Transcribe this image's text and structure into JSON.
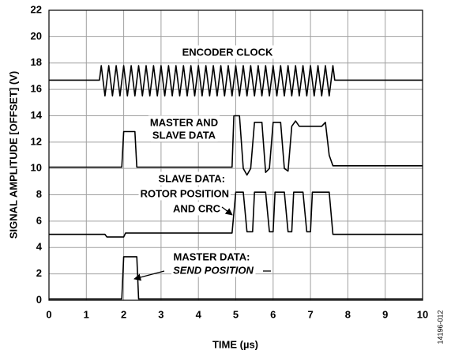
{
  "chart_data": {
    "type": "line",
    "xlabel": "TIME (µs)",
    "ylabel": "SIGNAL AMPLITUDE [OFFSET] (V)",
    "xlim": [
      0,
      10
    ],
    "ylim": [
      0,
      22
    ],
    "xticks": [
      0,
      1,
      2,
      3,
      4,
      5,
      6,
      7,
      8,
      9,
      10
    ],
    "yticks": [
      0,
      2,
      4,
      6,
      8,
      10,
      12,
      14,
      16,
      18,
      20,
      22
    ],
    "grid": true,
    "series": [
      {
        "color": "#000000",
        "x": [
          0,
          1.35,
          1.4,
          1.5,
          1.6,
          1.7,
          1.8,
          1.9,
          2.0,
          2.1,
          2.2,
          2.3,
          2.4,
          2.5,
          2.6,
          2.7,
          2.8,
          2.9,
          3.0,
          3.1,
          3.2,
          3.3,
          3.4,
          3.5,
          3.6,
          3.7,
          3.8,
          3.9,
          4.0,
          4.1,
          4.2,
          4.3,
          4.4,
          4.5,
          4.6,
          4.7,
          4.8,
          4.9,
          5.0,
          5.1,
          5.2,
          5.3,
          5.4,
          5.5,
          5.6,
          5.7,
          5.8,
          5.9,
          6.0,
          6.1,
          6.2,
          6.3,
          6.4,
          6.5,
          6.6,
          6.7,
          6.8,
          6.9,
          7.0,
          7.1,
          7.2,
          7.3,
          7.4,
          7.5,
          7.6,
          7.65,
          10
        ],
        "values": [
          16.7,
          16.7,
          17.8,
          15.5,
          17.8,
          15.5,
          17.8,
          15.5,
          17.8,
          15.5,
          17.8,
          15.5,
          17.8,
          15.5,
          17.8,
          15.5,
          17.8,
          15.5,
          17.8,
          15.5,
          17.8,
          15.5,
          17.8,
          15.5,
          17.8,
          15.5,
          17.8,
          15.5,
          17.8,
          15.5,
          17.8,
          15.5,
          17.8,
          15.5,
          17.8,
          15.5,
          17.8,
          15.5,
          17.8,
          15.5,
          17.8,
          15.5,
          17.8,
          15.5,
          17.8,
          15.5,
          17.8,
          15.5,
          17.8,
          15.5,
          17.8,
          15.5,
          17.8,
          15.5,
          17.8,
          15.5,
          17.8,
          15.5,
          17.8,
          15.5,
          17.8,
          15.5,
          17.8,
          15.5,
          17.8,
          16.7,
          16.7
        ]
      },
      {
        "color": "#000000",
        "x": [
          0,
          1.95,
          2.0,
          2.3,
          2.35,
          4.9,
          4.95,
          5.1,
          5.2,
          5.3,
          5.4,
          5.5,
          5.7,
          5.8,
          5.9,
          6.0,
          6.2,
          6.3,
          6.4,
          6.5,
          6.6,
          6.7,
          7.3,
          7.4,
          7.5,
          7.6,
          10
        ],
        "values": [
          10.1,
          10.1,
          12.8,
          12.8,
          10.1,
          10.1,
          14,
          14,
          10,
          9.5,
          10,
          13.5,
          13.5,
          9.7,
          10,
          13.5,
          13.5,
          10,
          9.8,
          13.2,
          13.6,
          13.2,
          13.2,
          13.5,
          11,
          10.2,
          10.2
        ]
      },
      {
        "color": "#000000",
        "x": [
          0,
          1.5,
          1.55,
          2.0,
          2.05,
          4.9,
          5.0,
          5.2,
          5.3,
          5.45,
          5.5,
          5.8,
          5.9,
          6.0,
          6.05,
          6.3,
          6.4,
          6.5,
          6.55,
          6.8,
          6.9,
          7.0,
          7.05,
          7.5,
          7.6,
          10
        ],
        "values": [
          5.0,
          5.0,
          4.8,
          4.8,
          5.1,
          5.1,
          8.2,
          8.2,
          5.2,
          5.2,
          8.2,
          8.2,
          5.2,
          5.2,
          8.2,
          8.2,
          5.2,
          5.2,
          8.2,
          8.2,
          5.2,
          5.2,
          8.2,
          8.2,
          5.0,
          5.0
        ]
      },
      {
        "color": "#000000",
        "x": [
          0,
          1.95,
          2.0,
          2.35,
          2.4,
          10
        ],
        "values": [
          0.1,
          0.1,
          3.3,
          3.3,
          0.1,
          0.1
        ]
      }
    ],
    "annotations": [
      {
        "lines": [
          "ENCODER CLOCK"
        ]
      },
      {
        "lines": [
          "MASTER AND",
          "SLAVE DATA"
        ]
      },
      {
        "lines": [
          "SLAVE DATA:",
          "ROTOR POSITION",
          "AND CRC"
        ]
      },
      {
        "lines": [
          "MASTER DATA:",
          "SEND POSITION"
        ]
      }
    ],
    "figure_id": "14196-012"
  }
}
